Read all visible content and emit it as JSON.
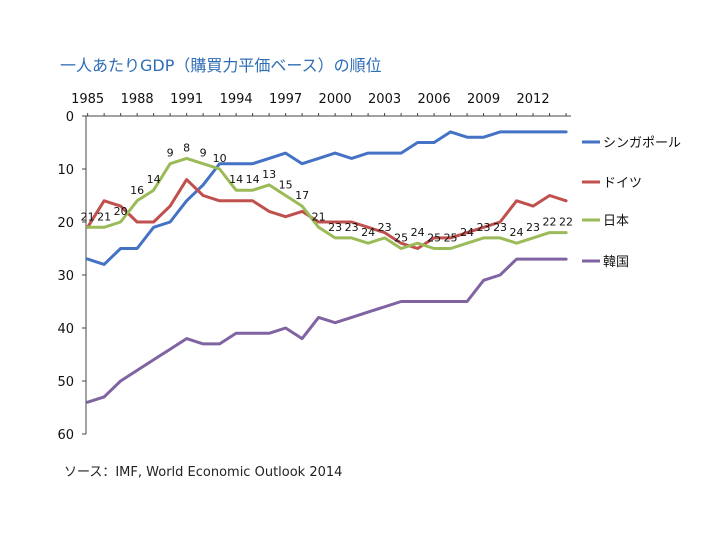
{
  "title": "一人あたりGDP（購買力平価ベース）の順位",
  "source": "ソース：IMF, World Economic Outlook 2014",
  "colors": {
    "singapore": "#4472C4",
    "germany": "#C0504D",
    "japan": "#9BBB59",
    "korea": "#8064A2"
  },
  "chart_data": {
    "type": "line",
    "title": "一人あたりGDP（購買力平価ベース）の順位",
    "xlabel": "",
    "ylabel": "",
    "x": [
      1985,
      1986,
      1987,
      1988,
      1989,
      1990,
      1991,
      1992,
      1993,
      1994,
      1995,
      1996,
      1997,
      1998,
      1999,
      2000,
      2001,
      2002,
      2003,
      2004,
      2005,
      2006,
      2007,
      2008,
      2009,
      2010,
      2011,
      2012,
      2013,
      2014
    ],
    "x_tick_labels": [
      "1985",
      "1988",
      "1991",
      "1994",
      "1997",
      "2000",
      "2003",
      "2006",
      "2009",
      "2012"
    ],
    "x_tick_values": [
      1985,
      1988,
      1991,
      1994,
      1997,
      2000,
      2003,
      2006,
      2009,
      2012
    ],
    "y_tick_labels": [
      "0",
      "10",
      "20",
      "30",
      "40",
      "50",
      "60"
    ],
    "y_tick_values": [
      0,
      10,
      20,
      30,
      40,
      50,
      60
    ],
    "ylim": [
      0,
      60
    ],
    "y_inverted": true,
    "xlim": [
      1984.9,
      2014.3
    ],
    "grid": false,
    "legend_position": "right",
    "series": [
      {
        "name": "シンガポール",
        "color": "#4472C4",
        "values": [
          27,
          28,
          25,
          25,
          21,
          20,
          16,
          13,
          9,
          9,
          9,
          8,
          7,
          9,
          8,
          7,
          8,
          7,
          7,
          7,
          5,
          5,
          3,
          4,
          4,
          3,
          3,
          3,
          3,
          3
        ]
      },
      {
        "name": "ドイツ",
        "color": "#C0504D",
        "values": [
          21,
          16,
          17,
          20,
          20,
          17,
          12,
          15,
          16,
          16,
          16,
          18,
          19,
          18,
          20,
          20,
          20,
          21,
          22,
          24,
          25,
          23,
          23,
          22,
          21,
          20,
          16,
          17,
          15,
          16
        ]
      },
      {
        "name": "日本",
        "color": "#9BBB59",
        "values": [
          21,
          21,
          20,
          16,
          14,
          9,
          8,
          9,
          10,
          14,
          14,
          13,
          15,
          17,
          21,
          23,
          23,
          24,
          23,
          25,
          24,
          25,
          25,
          24,
          23,
          23,
          24,
          23,
          22,
          22
        ],
        "data_labels": [
          "21",
          "21",
          "20",
          "16",
          "14",
          "9",
          "8",
          "9",
          "10",
          "14",
          "14",
          "13",
          "15",
          "17",
          "21",
          "23",
          "23",
          "24",
          "23",
          "25",
          "24",
          "25",
          "25",
          "24",
          "23",
          "23",
          "24",
          "23",
          "22",
          "22"
        ]
      },
      {
        "name": "韓国",
        "color": "#8064A2",
        "values": [
          54,
          53,
          50,
          48,
          46,
          44,
          42,
          43,
          43,
          41,
          41,
          41,
          40,
          42,
          38,
          39,
          38,
          37,
          36,
          35,
          35,
          35,
          35,
          35,
          31,
          30,
          27,
          27,
          27,
          27
        ]
      }
    ]
  }
}
